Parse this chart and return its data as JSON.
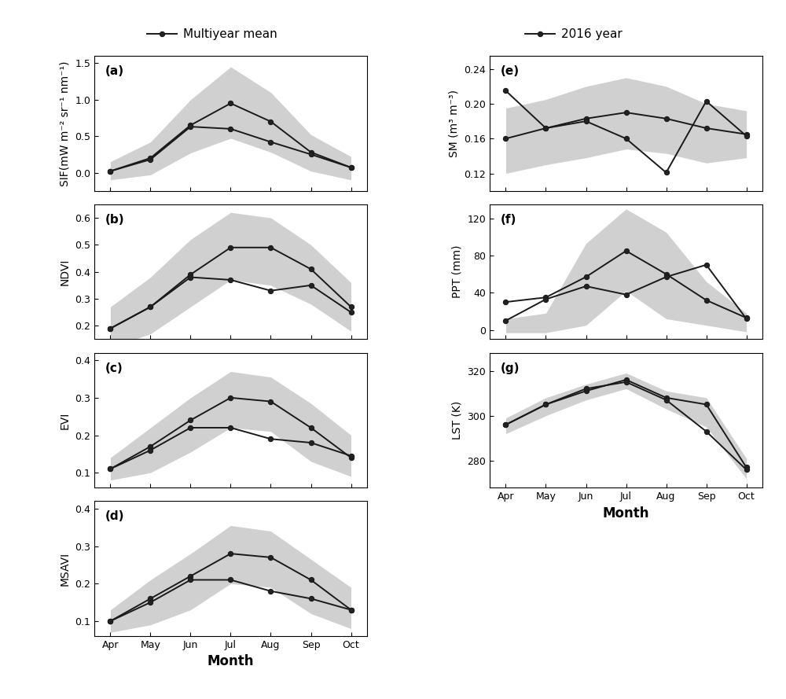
{
  "months": [
    "Apr",
    "May",
    "Jun",
    "Jul",
    "Aug",
    "Sep",
    "Oct"
  ],
  "sif_mean": [
    0.02,
    0.2,
    0.65,
    0.95,
    0.7,
    0.28,
    0.07
  ],
  "sif_2016": [
    0.02,
    0.18,
    0.63,
    0.6,
    0.42,
    0.25,
    0.07
  ],
  "sif_upper": [
    0.15,
    0.42,
    1.0,
    1.45,
    1.1,
    0.52,
    0.22
  ],
  "sif_lower": [
    -0.1,
    -0.03,
    0.27,
    0.47,
    0.28,
    0.02,
    -0.1
  ],
  "sif_ylim": [
    -0.25,
    1.6
  ],
  "sif_yticks": [
    0.0,
    0.5,
    1.0,
    1.5
  ],
  "sif_ylabel": "SIF(mW m⁻² sr⁻¹ nm⁻¹)",
  "ndvi_mean": [
    0.19,
    0.27,
    0.39,
    0.49,
    0.49,
    0.41,
    0.27
  ],
  "ndvi_2016": [
    0.19,
    0.27,
    0.38,
    0.37,
    0.33,
    0.35,
    0.25
  ],
  "ndvi_upper": [
    0.27,
    0.38,
    0.52,
    0.62,
    0.6,
    0.5,
    0.36
  ],
  "ndvi_lower": [
    0.12,
    0.17,
    0.27,
    0.37,
    0.35,
    0.28,
    0.18
  ],
  "ndvi_ylim": [
    0.15,
    0.65
  ],
  "ndvi_yticks": [
    0.2,
    0.3,
    0.4,
    0.5,
    0.6
  ],
  "ndvi_ylabel": "NDVI",
  "evi_mean": [
    0.11,
    0.17,
    0.24,
    0.3,
    0.29,
    0.22,
    0.14
  ],
  "evi_2016": [
    0.11,
    0.16,
    0.22,
    0.22,
    0.19,
    0.18,
    0.145
  ],
  "evi_upper": [
    0.14,
    0.22,
    0.3,
    0.37,
    0.355,
    0.285,
    0.2
  ],
  "evi_lower": [
    0.08,
    0.1,
    0.155,
    0.22,
    0.21,
    0.13,
    0.09
  ],
  "evi_ylim": [
    0.06,
    0.42
  ],
  "evi_yticks": [
    0.1,
    0.2,
    0.3,
    0.4
  ],
  "evi_ylabel": "EVI",
  "msavi_mean": [
    0.1,
    0.16,
    0.22,
    0.28,
    0.27,
    0.21,
    0.13
  ],
  "msavi_2016": [
    0.1,
    0.15,
    0.21,
    0.21,
    0.18,
    0.16,
    0.13
  ],
  "msavi_upper": [
    0.13,
    0.21,
    0.28,
    0.355,
    0.34,
    0.265,
    0.19
  ],
  "msavi_lower": [
    0.07,
    0.09,
    0.13,
    0.2,
    0.19,
    0.12,
    0.08
  ],
  "msavi_ylim": [
    0.06,
    0.42
  ],
  "msavi_yticks": [
    0.1,
    0.2,
    0.3,
    0.4
  ],
  "msavi_ylabel": "MSAVI",
  "sm_mean": [
    0.16,
    0.172,
    0.183,
    0.19,
    0.183,
    0.172,
    0.165
  ],
  "sm_2016": [
    0.215,
    0.172,
    0.18,
    0.16,
    0.121,
    0.203,
    0.163
  ],
  "sm_upper": [
    0.195,
    0.205,
    0.22,
    0.23,
    0.22,
    0.2,
    0.192
  ],
  "sm_lower": [
    0.12,
    0.13,
    0.138,
    0.148,
    0.143,
    0.132,
    0.138
  ],
  "sm_ylim": [
    0.1,
    0.255
  ],
  "sm_yticks": [
    0.12,
    0.16,
    0.2,
    0.24
  ],
  "sm_ylabel": "SM (m³ m⁻³)",
  "ppt_mean": [
    30,
    35,
    57,
    85,
    60,
    32,
    13
  ],
  "ppt_2016": [
    10,
    33,
    47,
    38,
    57,
    70,
    12
  ],
  "ppt_upper": [
    12,
    18,
    93,
    130,
    105,
    52,
    18
  ],
  "ppt_lower": [
    -3,
    -3,
    5,
    42,
    12,
    5,
    -2
  ],
  "ppt_ylim": [
    -10,
    135
  ],
  "ppt_yticks": [
    0,
    40,
    80,
    120
  ],
  "ppt_ylabel": "PPT (mm)",
  "lst_mean": [
    296,
    305,
    311,
    316,
    308,
    305,
    277
  ],
  "lst_2016": [
    296,
    305,
    312,
    315,
    307,
    293,
    276
  ],
  "lst_upper": [
    299,
    308,
    314,
    319,
    311,
    308,
    281
  ],
  "lst_lower": [
    292,
    300,
    307,
    312,
    303,
    295,
    272
  ],
  "lst_ylim": [
    268,
    328
  ],
  "lst_yticks": [
    280,
    300,
    320
  ],
  "lst_ylabel": "LST (K)",
  "shade_color": "#aaaaaa",
  "shade_alpha": 0.55,
  "line_color": "#1a1a1a",
  "line_width": 1.4,
  "marker": "o",
  "marker_size": 4.5,
  "marker_facecolor": "#222222",
  "legend_multiyear": "Multiyear mean",
  "legend_2016": "2016 year",
  "xlabel": "Month",
  "panel_labels": [
    "(a)",
    "(b)",
    "(c)",
    "(d)",
    "(e)",
    "(f)",
    "(g)"
  ]
}
